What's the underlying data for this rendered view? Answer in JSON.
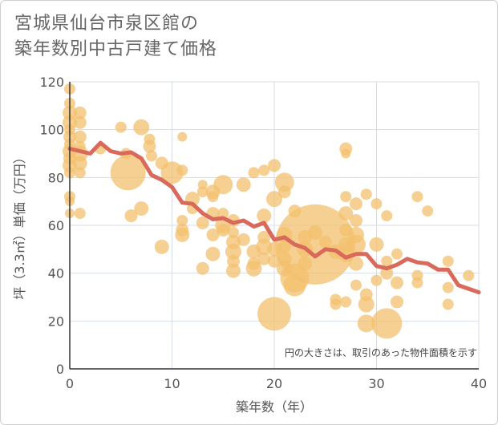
{
  "chart_data": {
    "type": "scatter",
    "title_lines": [
      "宮城県仙台市泉区館の",
      "築年数別中古戸建て価格"
    ],
    "xlabel": "築年数（年）",
    "ylabel": "坪（3.3㎡）単価（万円）",
    "xlim": [
      0,
      40
    ],
    "ylim": [
      0,
      120
    ],
    "x_ticks": [
      0,
      10,
      20,
      30,
      40
    ],
    "y_ticks": [
      0,
      20,
      40,
      60,
      80,
      100,
      120
    ],
    "grid": true,
    "note": "円の大きさは、取引のあった物件面積を示す",
    "colors": {
      "bubble": "#f3c06e",
      "line": "#d9695a",
      "grid": "#d6dde6",
      "axis": "#333333"
    },
    "series": [
      {
        "type": "bubble",
        "points": [
          {
            "x": 0,
            "y": 117,
            "r": 7
          },
          {
            "x": 0,
            "y": 111,
            "r": 7
          },
          {
            "x": 0,
            "y": 107,
            "r": 9
          },
          {
            "x": 0,
            "y": 103,
            "r": 9
          },
          {
            "x": 0,
            "y": 100,
            "r": 7
          },
          {
            "x": 0,
            "y": 97,
            "r": 8
          },
          {
            "x": 0,
            "y": 94,
            "r": 7
          },
          {
            "x": 0,
            "y": 91,
            "r": 9
          },
          {
            "x": 0,
            "y": 88,
            "r": 8
          },
          {
            "x": 0,
            "y": 85,
            "r": 9
          },
          {
            "x": 0,
            "y": 82,
            "r": 7
          },
          {
            "x": 0,
            "y": 72,
            "r": 7
          },
          {
            "x": 0,
            "y": 70,
            "r": 6
          },
          {
            "x": 0,
            "y": 65,
            "r": 6
          },
          {
            "x": 1,
            "y": 107,
            "r": 8
          },
          {
            "x": 1,
            "y": 103,
            "r": 8
          },
          {
            "x": 1,
            "y": 97,
            "r": 8
          },
          {
            "x": 1,
            "y": 93,
            "r": 7
          },
          {
            "x": 1,
            "y": 90,
            "r": 10
          },
          {
            "x": 1,
            "y": 86,
            "r": 9
          },
          {
            "x": 1,
            "y": 82,
            "r": 7
          },
          {
            "x": 1,
            "y": 65,
            "r": 7
          },
          {
            "x": 3,
            "y": 92,
            "r": 7
          },
          {
            "x": 5,
            "y": 101,
            "r": 7
          },
          {
            "x": 5.5,
            "y": 90,
            "r": 7
          },
          {
            "x": 6,
            "y": 64,
            "r": 8
          },
          {
            "x": 5.7,
            "y": 82,
            "r": 22
          },
          {
            "x": 7,
            "y": 101,
            "r": 10
          },
          {
            "x": 7,
            "y": 67,
            "r": 9
          },
          {
            "x": 7.8,
            "y": 96,
            "r": 7
          },
          {
            "x": 7.8,
            "y": 93,
            "r": 8
          },
          {
            "x": 8,
            "y": 89,
            "r": 7
          },
          {
            "x": 9,
            "y": 86,
            "r": 8
          },
          {
            "x": 9,
            "y": 51,
            "r": 9
          },
          {
            "x": 10,
            "y": 82,
            "r": 14
          },
          {
            "x": 11,
            "y": 97,
            "r": 6
          },
          {
            "x": 11,
            "y": 83,
            "r": 7
          },
          {
            "x": 11,
            "y": 62,
            "r": 7
          },
          {
            "x": 11,
            "y": 58,
            "r": 8
          },
          {
            "x": 11,
            "y": 56,
            "r": 9
          },
          {
            "x": 12,
            "y": 71,
            "r": 9
          },
          {
            "x": 12,
            "y": 67,
            "r": 7
          },
          {
            "x": 13,
            "y": 77,
            "r": 6
          },
          {
            "x": 13,
            "y": 74,
            "r": 7
          },
          {
            "x": 13,
            "y": 61,
            "r": 8
          },
          {
            "x": 13,
            "y": 42,
            "r": 8
          },
          {
            "x": 14,
            "y": 74,
            "r": 9
          },
          {
            "x": 14,
            "y": 72,
            "r": 7
          },
          {
            "x": 14,
            "y": 65,
            "r": 8
          },
          {
            "x": 14,
            "y": 56,
            "r": 8
          },
          {
            "x": 14,
            "y": 48,
            "r": 9
          },
          {
            "x": 15,
            "y": 77,
            "r": 12
          },
          {
            "x": 15,
            "y": 65,
            "r": 7
          },
          {
            "x": 15,
            "y": 60,
            "r": 10
          },
          {
            "x": 15,
            "y": 58,
            "r": 8
          },
          {
            "x": 16,
            "y": 62,
            "r": 8
          },
          {
            "x": 16,
            "y": 57,
            "r": 7
          },
          {
            "x": 16,
            "y": 53,
            "r": 9
          },
          {
            "x": 16,
            "y": 49,
            "r": 10
          },
          {
            "x": 16,
            "y": 45,
            "r": 8
          },
          {
            "x": 16,
            "y": 41,
            "r": 9
          },
          {
            "x": 17,
            "y": 77,
            "r": 9
          },
          {
            "x": 17,
            "y": 54,
            "r": 8
          },
          {
            "x": 18,
            "y": 82,
            "r": 7
          },
          {
            "x": 18,
            "y": 49,
            "r": 9
          },
          {
            "x": 18,
            "y": 44,
            "r": 8
          },
          {
            "x": 18,
            "y": 42,
            "r": 10
          },
          {
            "x": 19,
            "y": 83,
            "r": 7
          },
          {
            "x": 19,
            "y": 64,
            "r": 9
          },
          {
            "x": 19,
            "y": 55,
            "r": 8
          },
          {
            "x": 19,
            "y": 51,
            "r": 10
          },
          {
            "x": 19,
            "y": 46,
            "r": 8
          },
          {
            "x": 20,
            "y": 85,
            "r": 8
          },
          {
            "x": 20,
            "y": 71,
            "r": 10
          },
          {
            "x": 20,
            "y": 50,
            "r": 9
          },
          {
            "x": 20,
            "y": 45,
            "r": 8
          },
          {
            "x": 20,
            "y": 23,
            "r": 21
          },
          {
            "x": 21,
            "y": 78,
            "r": 12
          },
          {
            "x": 21,
            "y": 74,
            "r": 8
          },
          {
            "x": 21,
            "y": 56,
            "r": 10
          },
          {
            "x": 21,
            "y": 51,
            "r": 8
          },
          {
            "x": 21,
            "y": 46,
            "r": 9
          },
          {
            "x": 21,
            "y": 42,
            "r": 10
          },
          {
            "x": 22,
            "y": 66,
            "r": 8
          },
          {
            "x": 22,
            "y": 38,
            "r": 18
          },
          {
            "x": 22,
            "y": 35,
            "r": 14
          },
          {
            "x": 23,
            "y": 55,
            "r": 9
          },
          {
            "x": 23,
            "y": 50,
            "r": 10
          },
          {
            "x": 23,
            "y": 44,
            "r": 9
          },
          {
            "x": 24,
            "y": 52,
            "r": 50
          },
          {
            "x": 24,
            "y": 57,
            "r": 9
          },
          {
            "x": 25,
            "y": 53,
            "r": 8
          },
          {
            "x": 26,
            "y": 49,
            "r": 9
          },
          {
            "x": 26,
            "y": 29,
            "r": 7
          },
          {
            "x": 26,
            "y": 27,
            "r": 7
          },
          {
            "x": 27,
            "y": 92,
            "r": 8
          },
          {
            "x": 27,
            "y": 90,
            "r": 6
          },
          {
            "x": 27,
            "y": 72,
            "r": 7
          },
          {
            "x": 27,
            "y": 65,
            "r": 9
          },
          {
            "x": 27,
            "y": 58,
            "r": 8
          },
          {
            "x": 27,
            "y": 52,
            "r": 9
          },
          {
            "x": 27,
            "y": 48,
            "r": 10
          },
          {
            "x": 27,
            "y": 28,
            "r": 7
          },
          {
            "x": 28,
            "y": 69,
            "r": 8
          },
          {
            "x": 28,
            "y": 62,
            "r": 8
          },
          {
            "x": 28,
            "y": 56,
            "r": 10
          },
          {
            "x": 28,
            "y": 52,
            "r": 12
          },
          {
            "x": 28,
            "y": 44,
            "r": 9
          },
          {
            "x": 28,
            "y": 35,
            "r": 7
          },
          {
            "x": 29,
            "y": 73,
            "r": 7
          },
          {
            "x": 29,
            "y": 31,
            "r": 8
          },
          {
            "x": 29,
            "y": 27,
            "r": 10
          },
          {
            "x": 29,
            "y": 19,
            "r": 11
          },
          {
            "x": 30,
            "y": 69,
            "r": 7
          },
          {
            "x": 30,
            "y": 52,
            "r": 9
          },
          {
            "x": 30,
            "y": 37,
            "r": 7
          },
          {
            "x": 31,
            "y": 64,
            "r": 7
          },
          {
            "x": 31,
            "y": 45,
            "r": 7
          },
          {
            "x": 31,
            "y": 40,
            "r": 8
          },
          {
            "x": 31,
            "y": 19,
            "r": 19
          },
          {
            "x": 32,
            "y": 48,
            "r": 7
          },
          {
            "x": 32,
            "y": 36,
            "r": 8
          },
          {
            "x": 32,
            "y": 28,
            "r": 8
          },
          {
            "x": 34,
            "y": 72,
            "r": 7
          },
          {
            "x": 34,
            "y": 39,
            "r": 7
          },
          {
            "x": 34,
            "y": 36,
            "r": 7
          },
          {
            "x": 35,
            "y": 66,
            "r": 7
          },
          {
            "x": 37,
            "y": 45,
            "r": 7
          },
          {
            "x": 37,
            "y": 34,
            "r": 7
          },
          {
            "x": 37,
            "y": 27,
            "r": 7
          },
          {
            "x": 39,
            "y": 39,
            "r": 7
          }
        ]
      },
      {
        "type": "line",
        "points": [
          [
            0,
            92
          ],
          [
            1,
            91
          ],
          [
            2,
            90
          ],
          [
            3,
            94.5
          ],
          [
            4,
            91
          ],
          [
            5,
            90
          ],
          [
            6,
            90.5
          ],
          [
            7,
            88
          ],
          [
            8,
            81
          ],
          [
            9,
            79
          ],
          [
            10,
            76
          ],
          [
            11,
            69.5
          ],
          [
            12,
            69
          ],
          [
            13,
            65
          ],
          [
            14,
            62.5
          ],
          [
            15,
            63
          ],
          [
            16,
            61
          ],
          [
            17,
            62
          ],
          [
            18,
            59.5
          ],
          [
            19,
            61
          ],
          [
            20,
            54
          ],
          [
            21,
            55
          ],
          [
            22,
            52
          ],
          [
            23,
            50.5
          ],
          [
            24,
            47
          ],
          [
            25,
            50
          ],
          [
            26,
            49.5
          ],
          [
            27,
            46.5
          ],
          [
            28,
            48
          ],
          [
            29,
            48
          ],
          [
            30,
            43
          ],
          [
            31,
            42
          ],
          [
            32,
            43.5
          ],
          [
            33,
            46
          ],
          [
            34,
            44.5
          ],
          [
            35,
            44
          ],
          [
            36,
            41.5
          ],
          [
            37,
            41.5
          ],
          [
            38,
            35
          ],
          [
            39,
            33.5
          ],
          [
            40,
            32
          ]
        ]
      }
    ]
  }
}
